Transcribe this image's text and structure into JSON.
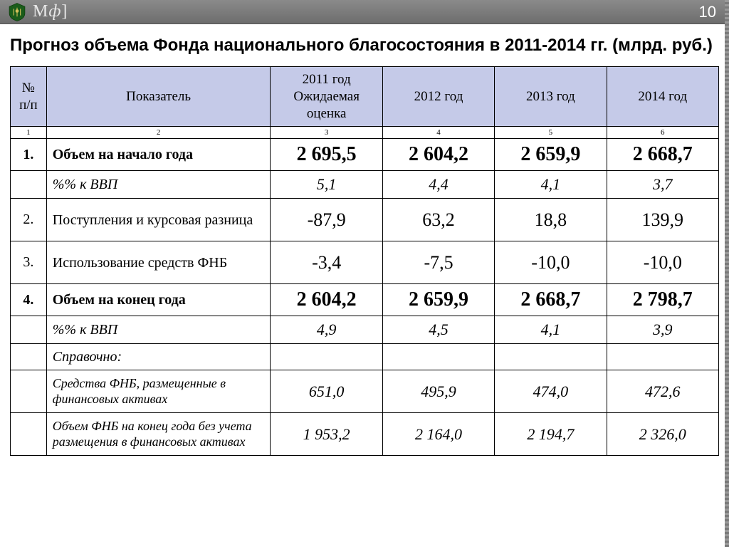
{
  "topbar": {
    "brand_m": "М",
    "brand_f": "ф",
    "brand_bracket": "]",
    "page_number": "10",
    "crest_color": "#1a5c1a",
    "bar_gradient_top": "#8a8a8a",
    "bar_gradient_bottom": "#6d6d6d"
  },
  "title": "Прогноз объема Фонда национального благосостояния в 2011-2014 гг. (млрд. руб.)",
  "table": {
    "header_bg": "#c5cae8",
    "columns": [
      "№ п/п",
      "Показатель",
      "2011 год Ожидаемая оценка",
      "2012 год",
      "2013 год",
      "2014 год"
    ],
    "col_numbers": [
      "1",
      "2",
      "3",
      "4",
      "5",
      "6"
    ],
    "rows": [
      {
        "style": "bold",
        "idx": "1.",
        "label": "Объем на начало года",
        "v": [
          "2 695,5",
          "2 604,2",
          "2 659,9",
          "2 668,7"
        ]
      },
      {
        "style": "ital",
        "idx": "",
        "label": "%% к ВВП",
        "v": [
          "5,1",
          "4,4",
          "4,1",
          "3,7"
        ],
        "short": true
      },
      {
        "style": "",
        "idx": "2.",
        "label": "Поступления и курсовая разница",
        "v": [
          "-87,9",
          "63,2",
          "18,8",
          "139,9"
        ],
        "tall": true
      },
      {
        "style": "",
        "idx": "3.",
        "label": "Использование средств ФНБ",
        "v": [
          "-3,4",
          "-7,5",
          "-10,0",
          "-10,0"
        ],
        "tall": true
      },
      {
        "style": "bold",
        "idx": "4.",
        "label": "Объем на конец года",
        "v": [
          "2 604,2",
          "2 659,9",
          "2 668,7",
          "2 798,7"
        ]
      },
      {
        "style": "ital",
        "idx": "",
        "label": "%% к ВВП",
        "v": [
          "4,9",
          "4,5",
          "4,1",
          "3,9"
        ],
        "short": true
      },
      {
        "style": "ital",
        "idx": "",
        "label": "Справочно:",
        "v": [
          "",
          "",
          "",
          ""
        ],
        "short": true
      },
      {
        "style": "smallital",
        "idx": "",
        "label": "Средства ФНБ, размещенные в финансовых активах",
        "v": [
          "651,0",
          "495,9",
          "474,0",
          "472,6"
        ],
        "tall": true
      },
      {
        "style": "smallital",
        "idx": "",
        "label": "Объем ФНБ на конец года без учета размещения в финансовых активах",
        "v": [
          "1 953,2",
          "2 164,0",
          "2 194,7",
          "2 326,0"
        ],
        "tall": true
      }
    ]
  }
}
